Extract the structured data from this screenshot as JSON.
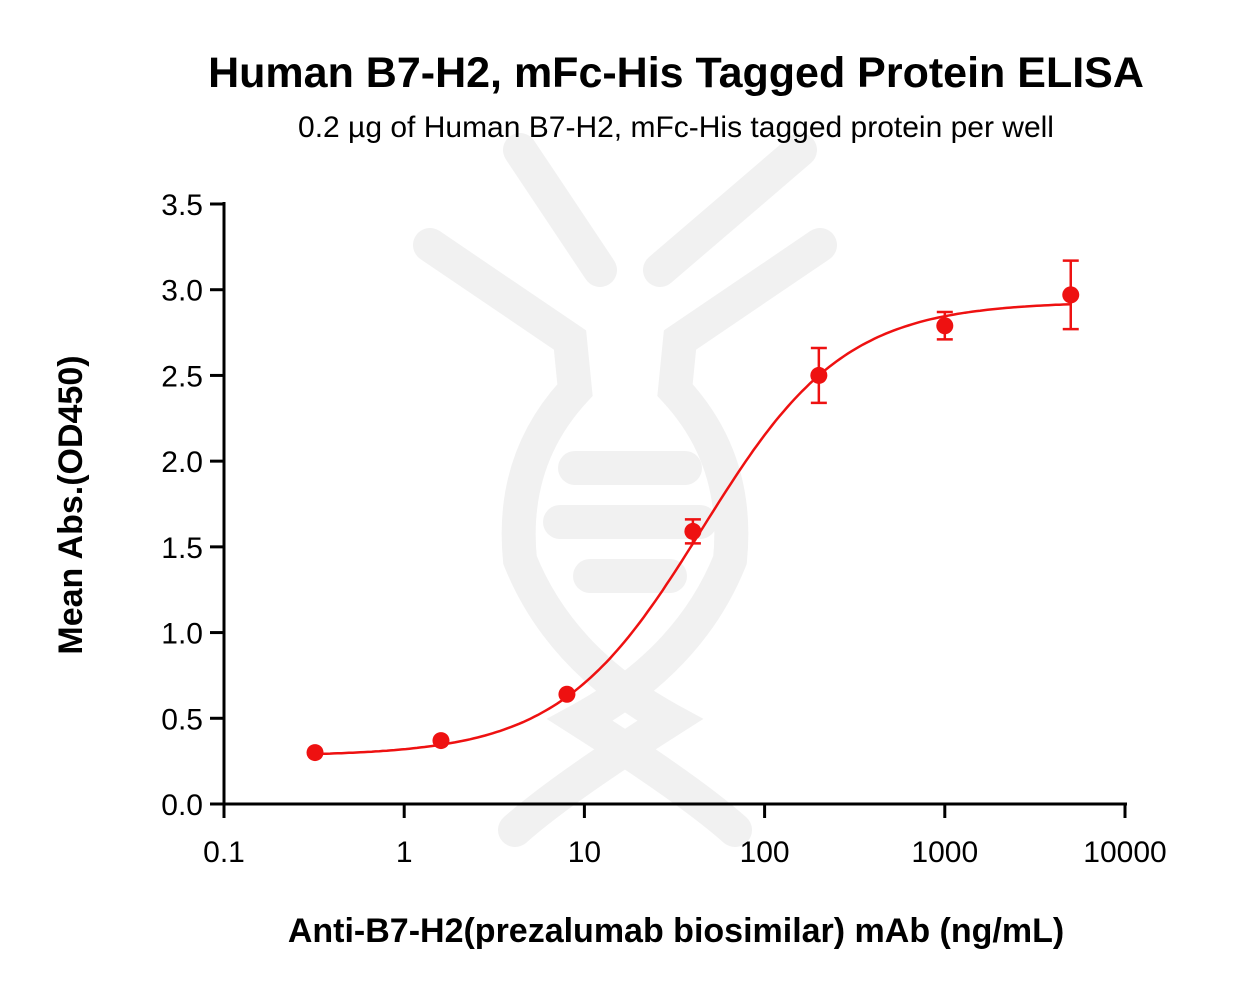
{
  "chart_data": {
    "type": "scatter",
    "title": "Human B7-H2, mFc-His Tagged Protein ELISA",
    "subtitle": "0.2 µg of Human B7-H2, mFc-His tagged protein per well",
    "xlabel": "Anti-B7-H2(prezalumab biosimilar) mAb (ng/mL)",
    "ylabel": "Mean Abs.(OD450)",
    "xscale": "log",
    "xlim": [
      0.1,
      10000
    ],
    "ylim": [
      0,
      3.5
    ],
    "xticks": [
      "0.1",
      "1",
      "10",
      "100",
      "1000",
      "10000"
    ],
    "yticks": [
      "0.0",
      "0.5",
      "1.0",
      "1.5",
      "2.0",
      "2.5",
      "3.0",
      "3.5"
    ],
    "grid": false,
    "color": "#ee1111",
    "x": [
      0.32,
      1.6,
      8,
      40,
      200,
      1000,
      5000
    ],
    "y": [
      0.3,
      0.37,
      0.64,
      1.59,
      2.5,
      2.79,
      2.97
    ],
    "error": [
      0,
      0,
      0,
      0.07,
      0.16,
      0.08,
      0.2
    ],
    "fit": {
      "model": "4PL",
      "bottom": 0.28,
      "top": 2.93,
      "ec50": 45,
      "hill": 1.1
    }
  }
}
